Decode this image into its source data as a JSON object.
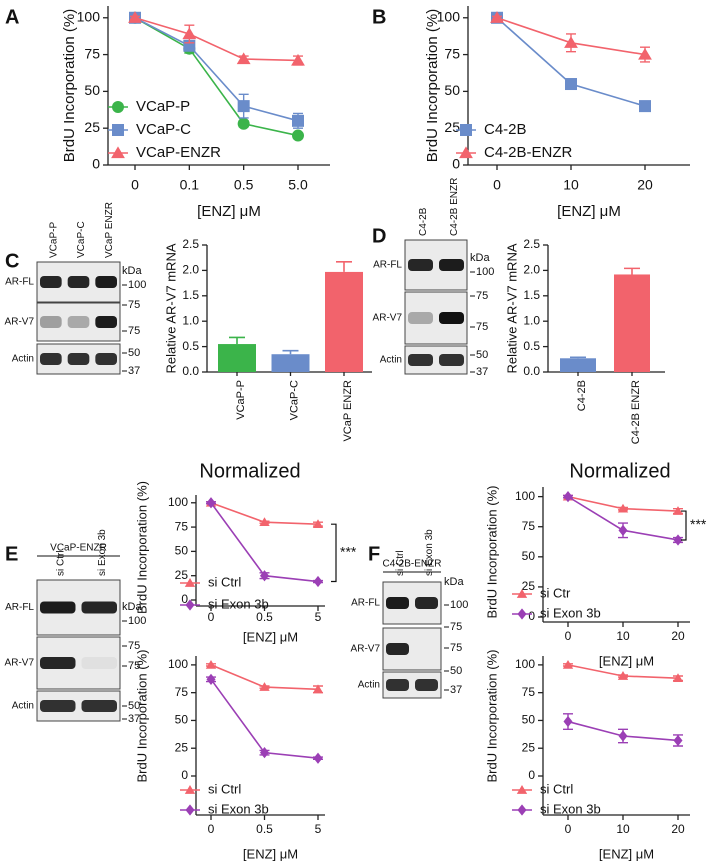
{
  "panel_labels": [
    "A",
    "B",
    "C",
    "D",
    "E",
    "F"
  ],
  "chart_data": [
    {
      "type": "line",
      "x_label": "[ENZ] μM",
      "y_label": "BrdU Incorporation (%)",
      "categories": [
        "0",
        "0.1",
        "0.5",
        "5.0"
      ],
      "ylim": [
        0,
        108
      ],
      "yticks": [
        0,
        25,
        50,
        75,
        100
      ],
      "legend": "lower left",
      "series": [
        {
          "name": "VCaP-P",
          "color": "#3bb44a",
          "marker": "circle",
          "values": [
            100,
            79,
            28,
            20
          ],
          "errors": [
            1,
            3,
            2,
            1
          ]
        },
        {
          "name": "VCaP-C",
          "color": "#6a8cca",
          "marker": "square",
          "values": [
            100,
            81,
            40,
            30
          ],
          "errors": [
            1,
            3,
            8,
            5
          ]
        },
        {
          "name": "VCaP-ENZR",
          "color": "#f2636c",
          "marker": "triangle",
          "values": [
            100,
            89,
            72,
            71
          ],
          "errors": [
            1,
            6,
            2,
            3
          ]
        }
      ]
    },
    {
      "type": "line",
      "x_label": "[ENZ] μM",
      "y_label": "BrdU Incorporation (%)",
      "categories": [
        "0",
        "10",
        "20"
      ],
      "ylim": [
        0,
        108
      ],
      "yticks": [
        0,
        25,
        50,
        75,
        100
      ],
      "legend": "lower left",
      "series": [
        {
          "name": "C4-2B",
          "color": "#6a8cca",
          "marker": "square",
          "values": [
            100,
            55,
            40
          ],
          "errors": [
            1,
            2,
            2
          ]
        },
        {
          "name": "C4-2B-ENZR",
          "color": "#f2636c",
          "marker": "triangle",
          "values": [
            100,
            83,
            75
          ],
          "errors": [
            1,
            6,
            5
          ]
        }
      ]
    },
    {
      "type": "bar",
      "y_label": "Relative AR-V7 mRNA",
      "categories": [
        "VCaP-P",
        "VCaP-C",
        "VCaP ENZR"
      ],
      "values": [
        0.55,
        0.35,
        1.97
      ],
      "errors": [
        0.13,
        0.07,
        0.2
      ],
      "colors": [
        "#3bb44a",
        "#6a8cca",
        "#f2636c"
      ],
      "ylim": [
        0,
        2.5
      ],
      "yticks": [
        {
          "value": 0,
          "label": "0.0"
        },
        0.5,
        {
          "value": 1,
          "label": "1.0"
        },
        1.5,
        {
          "value": 2,
          "label": "2.0"
        },
        2.5
      ]
    },
    {
      "type": "bar",
      "y_label": "Relative AR-V7 mRNA",
      "categories": [
        "C4-2B",
        "C4-2B ENZR"
      ],
      "values": [
        0.27,
        1.92
      ],
      "errors": [
        0.02,
        0.12
      ],
      "colors": [
        "#6a8cca",
        "#f2636c"
      ],
      "ylim": [
        0,
        2.5
      ],
      "yticks": [
        {
          "value": 0,
          "label": "0.0"
        },
        0.5,
        {
          "value": 1,
          "label": "1.0"
        },
        1.5,
        {
          "value": 2,
          "label": "2.0"
        },
        2.5
      ]
    },
    {
      "type": "line",
      "title": "Normalized",
      "x_label": "[ENZ] μM",
      "y_label": "BrdU Incorporation (%)",
      "categories": [
        "0",
        "0.5",
        "5"
      ],
      "ylim": [
        0,
        108
      ],
      "yticks": [
        0,
        25,
        50,
        75,
        100
      ],
      "legend": "lower left",
      "annotations": [
        "***"
      ],
      "series": [
        {
          "name": "si Ctrl",
          "color": "#f2636c",
          "marker": "triangle",
          "values": [
            100,
            80,
            78
          ],
          "errors": [
            1,
            1,
            2
          ]
        },
        {
          "name": "si Exon 3b",
          "color": "#9b3fb5",
          "marker": "diamond",
          "values": [
            100,
            25,
            19
          ],
          "errors": [
            1,
            3,
            1
          ]
        }
      ]
    },
    {
      "type": "line",
      "x_label": "[ENZ] μM",
      "y_label": "BrdU Incorporation (%)",
      "categories": [
        "0",
        "0.5",
        "5"
      ],
      "ylim": [
        0,
        108
      ],
      "yticks": [
        0,
        25,
        50,
        75,
        100
      ],
      "legend": "lower left",
      "series": [
        {
          "name": "si Ctrl",
          "color": "#f2636c",
          "marker": "triangle",
          "values": [
            100,
            80,
            78
          ],
          "errors": [
            1,
            1,
            3
          ]
        },
        {
          "name": "si Exon 3b",
          "color": "#9b3fb5",
          "marker": "diamond",
          "values": [
            87,
            21,
            16
          ],
          "errors": [
            2,
            2,
            1
          ]
        }
      ]
    },
    {
      "type": "line",
      "title": "Normalized",
      "x_label": "[ENZ] μM",
      "y_label": "BrdU Incorporation (%)",
      "categories": [
        "0",
        "10",
        "20"
      ],
      "ylim": [
        0,
        108
      ],
      "yticks": [
        0,
        25,
        50,
        75,
        100
      ],
      "legend": "lower left",
      "annotations": [
        "***"
      ],
      "series": [
        {
          "name": "si Ctr",
          "color": "#f2636c",
          "marker": "triangle",
          "values": [
            100,
            90,
            88
          ],
          "errors": [
            1,
            1,
            2
          ]
        },
        {
          "name": "si Exon 3b",
          "color": "#9b3fb5",
          "marker": "diamond",
          "values": [
            100,
            72,
            64
          ],
          "errors": [
            1,
            6,
            2
          ]
        }
      ]
    },
    {
      "type": "line",
      "x_label": "[ENZ] μM",
      "y_label": "BrdU Incorporation (%)",
      "categories": [
        "0",
        "10",
        "20"
      ],
      "ylim": [
        0,
        108
      ],
      "yticks": [
        0,
        25,
        50,
        75,
        100
      ],
      "legend": "lower left",
      "series": [
        {
          "name": "si Ctrl",
          "color": "#f2636c",
          "marker": "triangle",
          "values": [
            100,
            90,
            88
          ],
          "errors": [
            1,
            1,
            2
          ]
        },
        {
          "name": "si Exon 3b",
          "color": "#9b3fb5",
          "marker": "diamond",
          "values": [
            49,
            36,
            32
          ],
          "errors": [
            7,
            6,
            5
          ]
        }
      ]
    }
  ],
  "blots": [
    {
      "lanes": [
        "VCaP-P",
        "VCaP-C",
        "VCaP ENZR"
      ],
      "rows": [
        "AR-FL",
        "AR-V7",
        "Actin"
      ],
      "unit": "kDa",
      "markers": [
        "100",
        "75",
        "75",
        "50",
        "37"
      ]
    },
    {
      "lanes": [
        "C4-2B",
        "C4-2B ENZR"
      ],
      "rows": [
        "AR-FL",
        "AR-V7",
        "Actin"
      ],
      "unit": "kDa",
      "markers": [
        "100",
        "75",
        "75",
        "50",
        "37"
      ]
    },
    {
      "cell_line": "VCaP-ENZR",
      "lanes": [
        "si Ctrl",
        "si Exon 3b"
      ],
      "rows": [
        "AR-FL",
        "AR-V7",
        "Actin"
      ],
      "unit": "kDa",
      "markers": [
        "100",
        "75",
        "75",
        "50",
        "37"
      ]
    },
    {
      "cell_line": "C4-2B-ENZR",
      "lanes": [
        "si Ctrl",
        "si Exon 3b"
      ],
      "rows": [
        "AR-FL",
        "AR-V7",
        "Actin"
      ],
      "unit": "kDa",
      "markers": [
        "100",
        "75",
        "75",
        "50",
        "37"
      ]
    }
  ]
}
